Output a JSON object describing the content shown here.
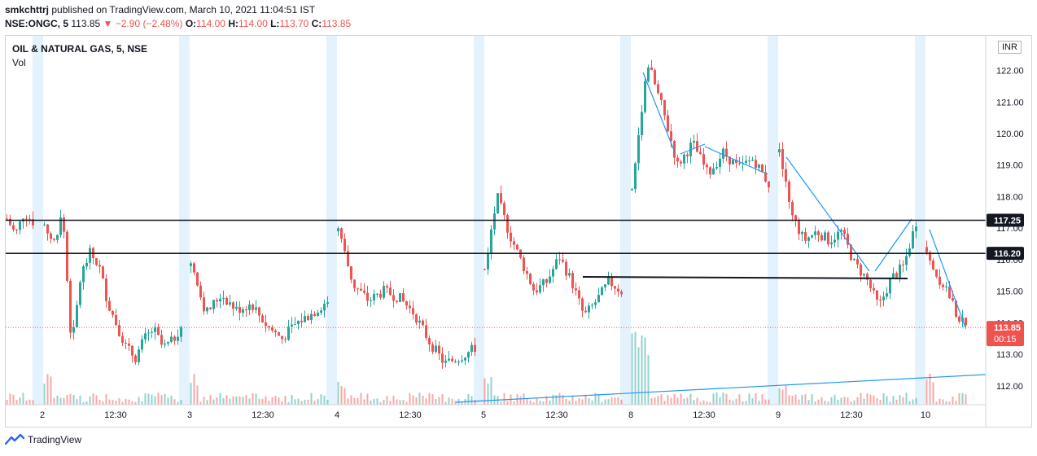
{
  "header": {
    "line1": {
      "author": "smkchttrj",
      "rest": " published on TradingView.com, March 10, 2021 11:04:51 IST"
    },
    "line2": {
      "symbol": "NSE:ONGC, 5",
      "last": "113.85",
      "change": "−2.90 (−2.48%)",
      "o_label": "O:",
      "o": "114.00",
      "h_label": "H:",
      "h": "114.00",
      "l_label": "L:",
      "l": "113.70",
      "c_label": "C:",
      "c": "113.85"
    }
  },
  "legend": {
    "title": "OIL & NATURAL GAS, 5, NSE",
    "vol": "Vol"
  },
  "currency": "INR",
  "footer": {
    "brand": "TradingView"
  },
  "colors": {
    "up": "#26a69a",
    "down": "#ef5350",
    "trend": "#2196f3",
    "level": "#131722",
    "session": "#e3f2fd"
  },
  "chart_data": {
    "type": "candlestick",
    "x_ticks": [
      "2",
      "12:30",
      "3",
      "12:30",
      "4",
      "12:30",
      "5",
      "12:30",
      "8",
      "12:30",
      "9",
      "12:30",
      "10"
    ],
    "y_ticks": [
      "112.00",
      "113.00",
      "114.00",
      "115.00",
      "116.00",
      "117.00",
      "118.00",
      "119.00",
      "120.00",
      "121.00",
      "122.00"
    ],
    "ylim": [
      111.4,
      123.1
    ],
    "horizontal_levels": [
      {
        "label": "117.25",
        "value": 117.25
      },
      {
        "label": "116.20",
        "value": 116.2
      }
    ],
    "last_price": {
      "label": "113.85",
      "value": 113.85,
      "countdown": "00:15"
    },
    "days": [
      {
        "label": "2",
        "path": [
          117.1,
          116.5,
          117.5,
          113.2,
          115.5,
          116.2,
          115.8,
          114.6,
          113.9,
          113.2,
          112.9,
          113.5,
          113.8,
          113.2,
          113.4,
          113.9
        ]
      },
      {
        "label": "3",
        "path": [
          115.8,
          114.3,
          114.9,
          114.4,
          114.6,
          113.9,
          113.5,
          114.0,
          114.3,
          114.7
        ]
      },
      {
        "label": "4",
        "path": [
          116.9,
          115.2,
          114.7,
          115.0,
          114.8,
          114.3,
          113.4,
          112.7,
          112.9,
          113.2
        ]
      },
      {
        "label": "5",
        "path": [
          115.7,
          118.0,
          116.8,
          115.9,
          115.0,
          115.3,
          116.1,
          115.3,
          114.2,
          114.7,
          115.3,
          115.0
        ]
      },
      {
        "label": "8",
        "path": [
          118.2,
          122.3,
          120.8,
          119.0,
          119.7,
          118.7,
          119.4,
          118.9,
          119.2,
          118.4
        ]
      },
      {
        "label": "9",
        "path": [
          119.4,
          117.4,
          116.6,
          116.9,
          116.6,
          116.9,
          115.9,
          115.4,
          114.5,
          115.4,
          115.8,
          117.2
        ]
      },
      {
        "label": "10",
        "path": [
          116.4,
          115.5,
          115.1,
          114.3,
          113.85
        ]
      }
    ],
    "annotations": [
      "trendline-day8-drop",
      "trendline-day8-rise",
      "trendline-day8-to-9",
      "trendline-day9-drop",
      "trendline-day9-v-down",
      "trendline-day9-v-up",
      "trendline-day10-drop",
      "support-line-day5-9",
      "volume-trendline"
    ]
  }
}
